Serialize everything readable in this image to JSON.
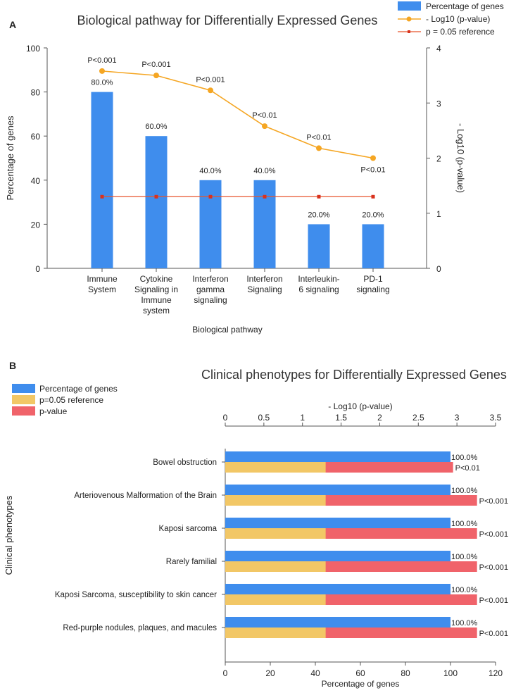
{
  "chart_data": [
    {
      "panel": "A",
      "type": "bar",
      "title": "Biological pathway for Differentially Expressed Genes",
      "xlabel": "Biological pathway",
      "ylabel": "Percentage of genes",
      "y2label": "- Log10 (p-value)",
      "ylim": [
        0,
        100
      ],
      "y2lim": [
        0,
        4
      ],
      "yticks": [
        0,
        20,
        40,
        60,
        80,
        100
      ],
      "y2ticks": [
        0,
        1,
        2,
        3,
        4
      ],
      "categories": [
        [
          "Immune",
          "System"
        ],
        [
          "Cytokine",
          "Signaling in",
          "Immune",
          "system"
        ],
        [
          "Interferon",
          "gamma",
          "signaling"
        ],
        [
          "Interferon",
          "Signaling"
        ],
        [
          "Interleukin-",
          "6 signaling"
        ],
        [
          "PD-1",
          "signaling"
        ]
      ],
      "series": [
        {
          "name": "Percentage of genes",
          "type": "bar",
          "color": "#3f8ded",
          "values": [
            80,
            60,
            40,
            40,
            20,
            20
          ],
          "labels": [
            "80.0%",
            "60.0%",
            "40.0%",
            "40.0%",
            "20.0%",
            "20.0%"
          ]
        },
        {
          "name": "- Log10 (p-value)",
          "type": "line",
          "axis": "right",
          "color": "#f5a623",
          "values": [
            3.58,
            3.5,
            3.23,
            2.58,
            2.18,
            2.0
          ],
          "labels": [
            "P<0.001",
            "P<0.001",
            "P<0.001",
            "P<0.01",
            "P<0.01",
            "P<0.01"
          ]
        },
        {
          "name": "p = 0.05 reference",
          "type": "line",
          "axis": "right",
          "color": "#e8542b",
          "values": [
            1.3,
            1.3,
            1.3,
            1.3,
            1.3,
            1.3
          ]
        }
      ],
      "legend_position": "top-right"
    },
    {
      "panel": "B",
      "type": "bar-horizontal",
      "title": "Clinical phenotypes for Differentially Expressed Genes",
      "xlabel": "Percentage of genes",
      "x2label": "- Log10 (p-value)",
      "ylabel": "Clinical phenotypes",
      "xlim": [
        0,
        120
      ],
      "x2lim": [
        0,
        3.5
      ],
      "xticks": [
        0,
        20,
        40,
        60,
        80,
        100,
        120
      ],
      "x2ticks": [
        "0",
        "0.5",
        "1",
        "1.5",
        "2",
        "2.5",
        "3",
        "3.5"
      ],
      "categories": [
        "Bowel obstruction",
        "Arteriovenous Malformation of the Brain",
        "Kaposi sarcoma",
        "Rarely familial",
        "Kaposi Sarcoma, susceptibility to skin cancer",
        "Red-purple nodules, plaques, and macules"
      ],
      "series": [
        {
          "name": "Percentage of genes",
          "color": "#3f8ded",
          "values": [
            100,
            100,
            100,
            100,
            100,
            100
          ],
          "labels": [
            "100.0%",
            "100.0%",
            "100.0%",
            "100.0%",
            "100.0%",
            "100.0%"
          ]
        },
        {
          "name": "p=0.05 reference",
          "color": "#f2c766",
          "values": [
            1.3,
            1.3,
            1.3,
            1.3,
            1.3,
            1.3
          ]
        },
        {
          "name": "p-value",
          "color": "#f0636a",
          "values": [
            2.95,
            3.26,
            3.26,
            3.26,
            3.26,
            3.26
          ],
          "labels": [
            "P<0.01",
            "P<0.001",
            "P<0.001",
            "P<0.001",
            "P<0.001",
            "P<0.001"
          ]
        }
      ],
      "legend_position": "top-left"
    }
  ]
}
